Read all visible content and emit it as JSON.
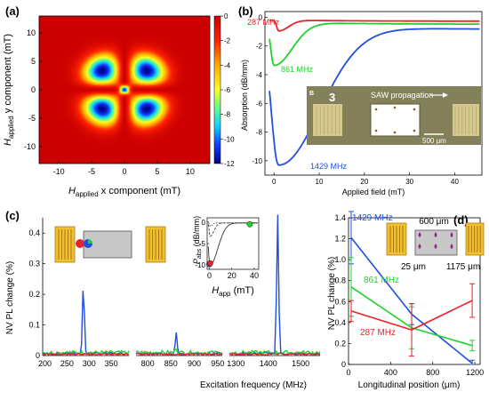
{
  "figure": {
    "panel_letters": [
      "(a)",
      "(b)",
      "(c)",
      "(d)"
    ],
    "colors": {
      "red": "#e8242a",
      "green": "#1fd12e",
      "blue": "#1f4fe0",
      "purple": "#8b2a8c"
    }
  },
  "chart_data": [
    {
      "panel": "(a)",
      "type": "heatmap",
      "xlabel_main": "H",
      "xlabel_sub": "applied",
      "xlabel_rest": " x component (mT)",
      "ylabel_main": "H",
      "ylabel_sub": "applied",
      "ylabel_rest": " y component (mT)",
      "xlim": [
        -13,
        13
      ],
      "ylim": [
        -13,
        13
      ],
      "xticks": [
        "-10",
        "-5",
        "0",
        "5",
        "10"
      ],
      "xtick_values": [
        -10,
        -5,
        0,
        5,
        10
      ],
      "yticks": [
        "-10",
        "-5",
        "0",
        "5",
        "10"
      ],
      "ytick_values": [
        -10,
        -5,
        0,
        5,
        10
      ],
      "colorbar": {
        "ticks": [
          "0",
          "-2",
          "-4",
          "-6",
          "-8",
          "-10",
          "-12"
        ],
        "values": [
          0,
          -2,
          -4,
          -6,
          -8,
          -10,
          -12
        ],
        "range": [
          -12,
          0
        ]
      },
      "description": "butterfly pattern with four lobes along the diagonals; minimum about -12 near the origin"
    },
    {
      "panel": "(b)",
      "type": "line",
      "xlabel": "Applied field (mT)",
      "ylabel": "Absorption (dB/mm)",
      "xlim": [
        -2,
        46
      ],
      "ylim": [
        -11,
        0.4
      ],
      "xticks": [
        "0",
        "10",
        "20",
        "30",
        "40"
      ],
      "xtick_values": [
        0,
        10,
        20,
        30,
        40
      ],
      "yticks": [
        "0",
        "-2",
        "-4",
        "-6",
        "-8",
        "-10"
      ],
      "ytick_values": [
        0,
        -2,
        -4,
        -6,
        -8,
        -10
      ],
      "series": [
        {
          "name": "287 MHz",
          "color": "#e8242a",
          "dip_min": -0.95,
          "dip_x": 1.0,
          "width": 2.2,
          "end": -0.2
        },
        {
          "name": "861 MHz",
          "color": "#1fd12e",
          "dip_min": -3.35,
          "dip_x": 0.0,
          "width": 4.0,
          "end": -0.35
        },
        {
          "name": "1429 MHz",
          "color": "#1f4fe0",
          "dip_min": -10.3,
          "dip_x": 1.0,
          "width": 9.0,
          "end": -0.6
        }
      ],
      "inset": {
        "letter": "3",
        "annotation": "SAW propagation",
        "scale_label": "500 μm"
      }
    },
    {
      "panel": "(c)",
      "type": "line",
      "xlabel": "Excitation frequency (MHz)",
      "ylabel": "NV PL change (%)",
      "ylim": [
        0,
        0.45
      ],
      "yticks": [
        "0",
        "0.1",
        "0.2",
        "0.3",
        "0.4"
      ],
      "ytick_values": [
        0,
        0.1,
        0.2,
        0.3,
        0.4
      ],
      "segments": [
        {
          "xlim": [
            195,
            390
          ],
          "xticks": [
            "200",
            "250",
            "300",
            "350"
          ],
          "xtick_values": [
            200,
            250,
            300,
            350
          ],
          "peak_x": 287,
          "peak_y": 0.23
        },
        {
          "xlim": [
            775,
            960
          ],
          "xticks": [
            "800",
            "850",
            "900",
            "950"
          ],
          "xtick_values": [
            800,
            850,
            900,
            950
          ],
          "peak_x": 861,
          "peak_y": 0.07
        },
        {
          "xlim": [
            1280,
            1560
          ],
          "xticks": [
            "1300",
            "1400",
            "1500"
          ],
          "xtick_values": [
            1300,
            1400,
            1500
          ],
          "peak_x": 1429,
          "peak_y": 0.455
        }
      ],
      "series": [
        {
          "name": "blue",
          "color": "#1f4fe0"
        },
        {
          "name": "green",
          "color": "#1fd12e"
        },
        {
          "name": "red",
          "color": "#e8242a"
        }
      ],
      "inset": {
        "ylabel_main": "P",
        "ylabel_sub": "abs",
        "ylabel_rest": " (dB/mm)",
        "xlabel_main": "H",
        "xlabel_sub": "app",
        "xlabel_rest": " (mT)",
        "xlim": [
          -2,
          44
        ],
        "ylim": [
          -11,
          1
        ],
        "xticks": [
          "0",
          "20",
          "40"
        ],
        "xtick_values": [
          0,
          20,
          40
        ],
        "yticks": [
          "0",
          "-5",
          "-10"
        ],
        "ytick_values": [
          0,
          -5,
          -10
        ],
        "markers": [
          {
            "color": "#1f4fe0",
            "x": 0,
            "y": -9.8
          },
          {
            "color": "#e8242a",
            "x": 0.6,
            "y": -9.6
          },
          {
            "color": "#1fd12e",
            "x": 36,
            "y": -0.5
          }
        ]
      }
    },
    {
      "panel": "(d)",
      "type": "line",
      "xlabel": "Longitudinal position (μm)",
      "ylabel": "NV PL change (%)",
      "xlim": [
        0,
        1250
      ],
      "ylim": [
        0,
        1.4
      ],
      "xticks": [
        "0",
        "400",
        "800",
        "1200"
      ],
      "xtick_values": [
        0,
        400,
        800,
        1200
      ],
      "yticks": [
        "0",
        "0.2",
        "0.4",
        "0.6",
        "0.8",
        "1.0",
        "1.2",
        "1.4"
      ],
      "ytick_values": [
        0,
        0.2,
        0.4,
        0.6,
        0.8,
        1.0,
        1.2,
        1.4
      ],
      "x": [
        25,
        600,
        1175
      ],
      "series": [
        {
          "name": "1429 MHz",
          "color": "#1f4fe0",
          "values": [
            1.21,
            0.48,
            0.01
          ],
          "errors": [
            0.25,
            0.1,
            0.03
          ]
        },
        {
          "name": "861 MHz",
          "color": "#1fd12e",
          "values": [
            0.74,
            0.35,
            0.18
          ],
          "errors": [
            0.28,
            0.2,
            0.05
          ]
        },
        {
          "name": "287 MHz",
          "color": "#e8242a",
          "values": [
            0.51,
            0.33,
            0.61
          ],
          "errors": [
            0.1,
            0.25,
            0.16
          ]
        }
      ],
      "inset": {
        "label_top": "600 μm",
        "label_left": "25 μm",
        "label_right": "1175 μm"
      }
    }
  ]
}
